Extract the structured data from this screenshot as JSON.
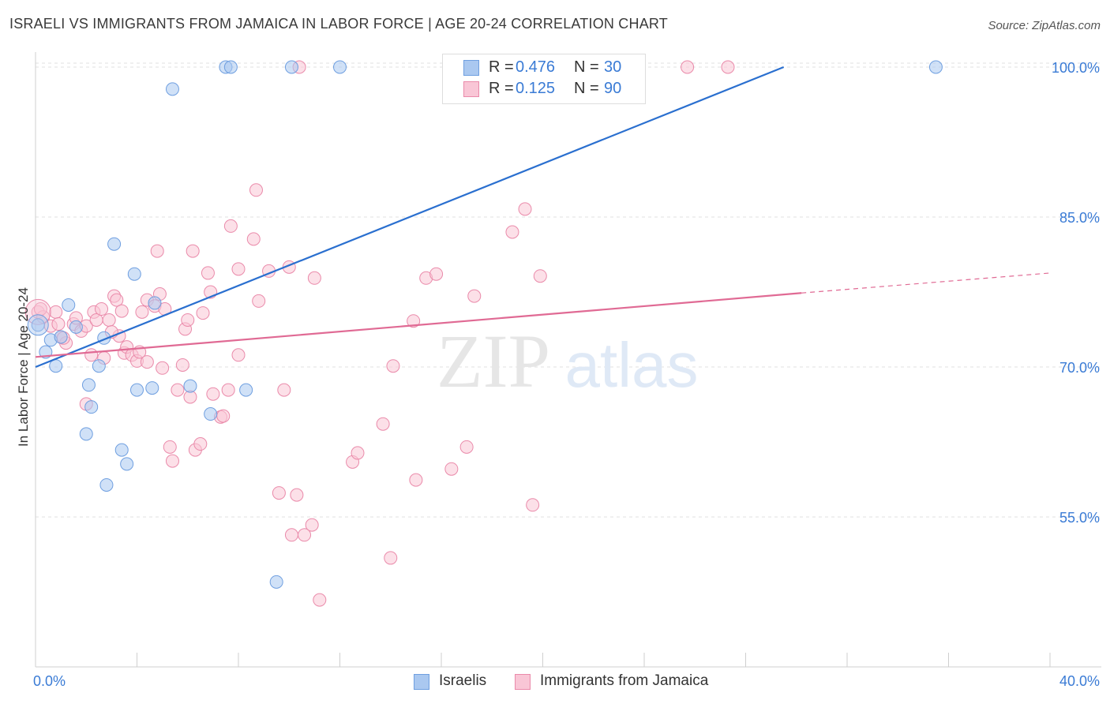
{
  "header": {
    "title": "ISRAELI VS IMMIGRANTS FROM JAMAICA IN LABOR FORCE | AGE 20-24 CORRELATION CHART",
    "source": "Source: ZipAtlas.com"
  },
  "legend": {
    "rows": [
      {
        "r_label": "R =",
        "r_value": "0.476",
        "n_label": "N =",
        "n_value": "30",
        "color": "#aac8f0",
        "border": "#6f9fe0"
      },
      {
        "r_label": "R =",
        "r_value": "0.125",
        "n_label": "N =",
        "n_value": "90",
        "color": "#f9c6d6",
        "border": "#ea8aaa"
      }
    ]
  },
  "bottom_legend": {
    "israelis": "Israelis",
    "jamaica": "Immigrants from Jamaica"
  },
  "watermark": {
    "zip": "ZIP",
    "atlas": "atlas"
  },
  "chart_data": {
    "type": "scatter",
    "title": "ISRAELI VS IMMIGRANTS FROM JAMAICA IN LABOR FORCE | AGE 20-24 CORRELATION CHART",
    "ylabel": "In Labor Force | Age 20-24",
    "xlabel": "",
    "xlim": [
      0,
      40
    ],
    "ylim": [
      40,
      101.5
    ],
    "x_tick_labels": [
      {
        "value": 0,
        "label": "0.0%"
      },
      {
        "value": 40,
        "label": "40.0%"
      }
    ],
    "y_tick_labels": [
      {
        "value": 100,
        "label": "100.0%"
      },
      {
        "value": 85,
        "label": "85.0%"
      },
      {
        "value": 70,
        "label": "70.0%"
      },
      {
        "value": 55,
        "label": "55.0%"
      }
    ],
    "colors": {
      "israelis_fill": "#aac8f0",
      "israelis_stroke": "#6f9fe0",
      "israelis_line": "#2a6fcf",
      "jamaica_fill": "#f9c6d6",
      "jamaica_stroke": "#ea8aaa",
      "jamaica_line": "#e06a94",
      "tick_label": "#3a7bd5"
    },
    "series": [
      {
        "name": "Israelis",
        "trend": {
          "x0": 0,
          "y0": 70.0,
          "x1": 29.5,
          "y1": 100.0,
          "dash_to": null
        },
        "points": [
          [
            0.1,
            74.2
          ],
          [
            0.4,
            71.5
          ],
          [
            0.6,
            72.7
          ],
          [
            0.8,
            70.1
          ],
          [
            1.0,
            73.0
          ],
          [
            1.3,
            76.2
          ],
          [
            1.6,
            74.0
          ],
          [
            2.1,
            68.2
          ],
          [
            2.2,
            66.0
          ],
          [
            2.0,
            63.3
          ],
          [
            2.5,
            70.1
          ],
          [
            2.7,
            72.9
          ],
          [
            2.8,
            58.2
          ],
          [
            3.1,
            82.3
          ],
          [
            3.4,
            61.7
          ],
          [
            3.6,
            60.3
          ],
          [
            3.9,
            79.3
          ],
          [
            4.0,
            67.7
          ],
          [
            4.6,
            67.9
          ],
          [
            4.7,
            76.4
          ],
          [
            5.4,
            97.8
          ],
          [
            6.1,
            68.1
          ],
          [
            6.9,
            65.3
          ],
          [
            7.5,
            100.0
          ],
          [
            7.7,
            100.0
          ],
          [
            8.3,
            67.7
          ],
          [
            9.5,
            48.5
          ],
          [
            10.1,
            100.0
          ],
          [
            12.0,
            100.0
          ],
          [
            35.5,
            100.0
          ]
        ]
      },
      {
        "name": "Immigrants from Jamaica",
        "trend": {
          "x0": 0,
          "y0": 71.0,
          "x1": 30.2,
          "y1": 77.4,
          "dash_to": [
            40,
            79.4
          ]
        },
        "points": [
          [
            0.1,
            75.5
          ],
          [
            0.3,
            75.0
          ],
          [
            0.6,
            74.1
          ],
          [
            0.8,
            75.5
          ],
          [
            0.9,
            74.3
          ],
          [
            1.0,
            73.0
          ],
          [
            1.2,
            72.4
          ],
          [
            1.5,
            74.3
          ],
          [
            1.6,
            74.9
          ],
          [
            1.8,
            73.6
          ],
          [
            2.0,
            74.1
          ],
          [
            2.0,
            66.3
          ],
          [
            2.2,
            71.2
          ],
          [
            2.3,
            75.5
          ],
          [
            2.4,
            74.7
          ],
          [
            2.6,
            75.8
          ],
          [
            2.7,
            70.9
          ],
          [
            2.9,
            74.7
          ],
          [
            3.1,
            77.1
          ],
          [
            3.2,
            76.7
          ],
          [
            3.3,
            73.1
          ],
          [
            3.4,
            75.6
          ],
          [
            3.5,
            71.4
          ],
          [
            3.6,
            72.0
          ],
          [
            3.8,
            71.2
          ],
          [
            4.0,
            70.6
          ],
          [
            4.1,
            71.5
          ],
          [
            4.2,
            75.5
          ],
          [
            4.4,
            76.7
          ],
          [
            4.4,
            70.5
          ],
          [
            4.7,
            76.1
          ],
          [
            4.8,
            81.6
          ],
          [
            4.9,
            77.3
          ],
          [
            5.0,
            69.9
          ],
          [
            5.1,
            75.8
          ],
          [
            5.3,
            62.0
          ],
          [
            5.4,
            60.6
          ],
          [
            5.6,
            67.7
          ],
          [
            5.8,
            70.2
          ],
          [
            5.9,
            73.8
          ],
          [
            6.0,
            74.7
          ],
          [
            6.1,
            67.0
          ],
          [
            6.2,
            81.6
          ],
          [
            6.3,
            61.7
          ],
          [
            6.6,
            75.4
          ],
          [
            6.8,
            79.4
          ],
          [
            6.9,
            77.5
          ],
          [
            7.0,
            67.3
          ],
          [
            7.3,
            65.0
          ],
          [
            7.4,
            65.1
          ],
          [
            7.6,
            67.7
          ],
          [
            7.7,
            84.1
          ],
          [
            8.0,
            79.8
          ],
          [
            8.0,
            71.2
          ],
          [
            8.6,
            82.8
          ],
          [
            8.7,
            87.7
          ],
          [
            8.8,
            76.6
          ],
          [
            9.2,
            79.6
          ],
          [
            9.6,
            57.4
          ],
          [
            9.8,
            67.7
          ],
          [
            10.0,
            80.0
          ],
          [
            10.1,
            53.2
          ],
          [
            10.3,
            57.2
          ],
          [
            10.4,
            100.0
          ],
          [
            10.6,
            53.2
          ],
          [
            10.9,
            54.2
          ],
          [
            11.0,
            78.9
          ],
          [
            11.2,
            46.7
          ],
          [
            12.5,
            60.5
          ],
          [
            12.7,
            61.4
          ],
          [
            13.7,
            64.3
          ],
          [
            14.0,
            50.9
          ],
          [
            14.1,
            70.1
          ],
          [
            14.9,
            74.6
          ],
          [
            15.0,
            58.7
          ],
          [
            15.4,
            78.9
          ],
          [
            15.8,
            79.3
          ],
          [
            16.4,
            59.8
          ],
          [
            17.0,
            62.0
          ],
          [
            17.3,
            77.1
          ],
          [
            18.8,
            83.5
          ],
          [
            19.3,
            85.8
          ],
          [
            19.6,
            56.2
          ],
          [
            19.9,
            79.1
          ],
          [
            25.7,
            100.0
          ],
          [
            27.3,
            100.0
          ],
          [
            0.2,
            75.8
          ],
          [
            1.1,
            72.9
          ],
          [
            3.0,
            73.5
          ],
          [
            6.5,
            62.3
          ]
        ]
      }
    ]
  }
}
